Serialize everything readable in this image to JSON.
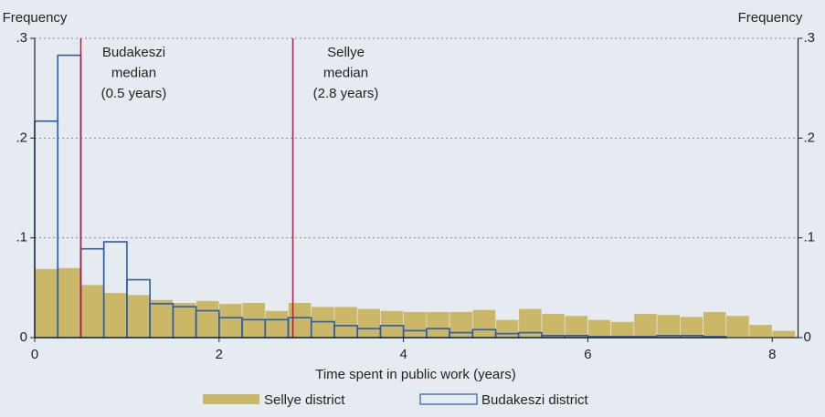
{
  "chart_data": {
    "type": "histogram",
    "ylabel": "Frequency",
    "y2label": "Frequency",
    "xlabel": "Time spent in public work (years)",
    "bins": [
      0,
      0.25,
      0.5,
      0.75,
      1,
      1.25,
      1.5,
      1.75,
      2,
      2.25,
      2.5,
      2.75,
      3,
      3.25,
      3.5,
      3.75,
      4,
      4.25,
      4.5,
      4.75,
      5,
      5.25,
      5.5,
      5.75,
      6,
      6.25,
      6.5,
      6.75,
      7,
      7.25,
      7.5,
      7.75,
      8,
      8.25
    ],
    "series": [
      {
        "name": "Sellye district",
        "color": "#cbb768",
        "filled": true,
        "values": [
          0.069,
          0.07,
          0.053,
          0.045,
          0.043,
          0.038,
          0.035,
          0.037,
          0.034,
          0.035,
          0.027,
          0.035,
          0.031,
          0.031,
          0.029,
          0.027,
          0.026,
          0.026,
          0.026,
          0.028,
          0.018,
          0.029,
          0.024,
          0.022,
          0.018,
          0.016,
          0.024,
          0.023,
          0.021,
          0.026,
          0.022,
          0.013,
          0.007
        ]
      },
      {
        "name": "Budakeszi district",
        "color": "#2a5caa",
        "filled": false,
        "values": [
          0.217,
          0.283,
          0.089,
          0.096,
          0.058,
          0.034,
          0.031,
          0.027,
          0.02,
          0.018,
          0.018,
          0.02,
          0.016,
          0.012,
          0.009,
          0.012,
          0.007,
          0.009,
          0.005,
          0.008,
          0.004,
          0.005,
          0.002,
          0.002,
          0.001,
          0.001,
          0.001,
          0.002,
          0.002,
          0.001,
          0,
          0,
          0
        ]
      }
    ],
    "annotations": [
      {
        "x": 0.5,
        "color": "#c0143c",
        "lines": [
          "Budakeszi",
          "median",
          "(0.5 years)"
        ]
      },
      {
        "x": 2.8,
        "color": "#c0143c",
        "lines": [
          "Sellye",
          "median",
          "(2.8 years)"
        ]
      }
    ],
    "xlim": [
      0,
      8.28
    ],
    "xticks": [
      0,
      2,
      4,
      6,
      8
    ],
    "ylim": [
      0,
      0.3
    ],
    "yticks": [
      0,
      {
        "value": 0.1,
        "label": ".1"
      },
      {
        "value": 0.2,
        "label": ".2"
      },
      {
        "value": 0.3,
        "label": ".3"
      }
    ],
    "y2lim": [
      0,
      0.3
    ],
    "y2ticks": [
      0,
      {
        "value": 0.1,
        "label": ".1"
      },
      {
        "value": 0.2,
        "label": ".2"
      },
      {
        "value": 0.3,
        "label": ".3"
      }
    ],
    "grid": true,
    "legend": "bottom"
  }
}
